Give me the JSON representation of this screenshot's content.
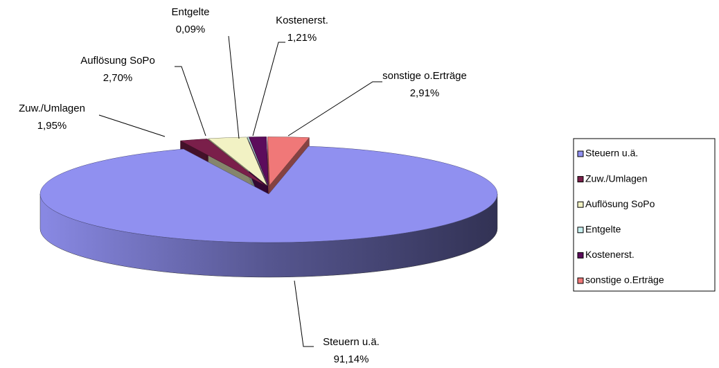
{
  "chart_data": {
    "type": "pie3d",
    "categories": [
      "Steuern u.ä.",
      "Zuw./Umlagen",
      "Auflösung SoPo",
      "Entgelte",
      "Kostenerst.",
      "sonstige o.Erträge"
    ],
    "values": [
      91.14,
      1.95,
      2.7,
      0.09,
      1.21,
      2.91
    ],
    "value_labels": [
      "91,14%",
      "1,95%",
      "2,70%",
      "0,09%",
      "1,21%",
      "2,91%"
    ],
    "colors": [
      "#9090f0",
      "#7a1f4a",
      "#f2f2c4",
      "#c8f0f0",
      "#5c0c5c",
      "#f07878"
    ],
    "legend": "right"
  }
}
